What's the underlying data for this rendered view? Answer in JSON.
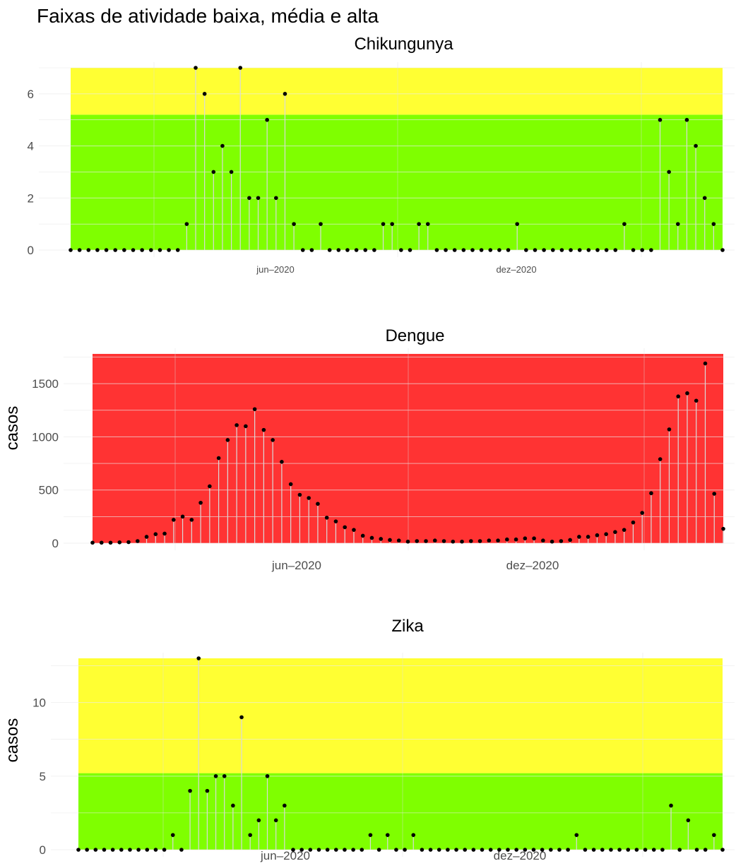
{
  "title": "Faixas de atividade baixa, média e alta",
  "chart_data": [
    {
      "type": "lollipop",
      "title": "Chikungunya",
      "ylabel": "",
      "ylim": [
        0,
        7
      ],
      "y_ticks": [
        "0",
        "2",
        "4",
        "6"
      ],
      "x_ticks": [
        "jun–2020",
        "dez–2020"
      ],
      "bands": [
        {
          "color": "#7fff00",
          "from": 0,
          "to": 5.2
        },
        {
          "color": "#ffff33",
          "from": 5.2,
          "to": 7
        }
      ],
      "values": [
        0,
        0,
        0,
        0,
        0,
        0,
        0,
        0,
        0,
        0,
        0,
        0,
        0,
        1,
        7,
        6,
        3,
        4,
        3,
        7,
        2,
        2,
        5,
        2,
        6,
        1,
        0,
        0,
        1,
        0,
        0,
        0,
        0,
        0,
        0,
        1,
        1,
        0,
        0,
        1,
        1,
        0,
        0,
        0,
        0,
        0,
        0,
        0,
        0,
        0,
        1,
        0,
        0,
        0,
        0,
        0,
        0,
        0,
        0,
        0,
        0,
        0,
        1,
        0,
        0,
        0,
        5,
        3,
        1,
        5,
        4,
        2,
        1,
        0
      ]
    },
    {
      "type": "lollipop",
      "title": "Dengue",
      "ylabel": "casos",
      "ylim": [
        0,
        1780
      ],
      "y_ticks": [
        "0",
        "500",
        "1000",
        "1500"
      ],
      "x_ticks": [
        "jun–2020",
        "dez–2020"
      ],
      "bands": [
        {
          "color": "#ff3333",
          "from": 0,
          "to": 1780
        }
      ],
      "values": [
        5,
        5,
        5,
        8,
        10,
        20,
        60,
        85,
        90,
        220,
        250,
        220,
        380,
        535,
        800,
        970,
        1110,
        1100,
        1260,
        1065,
        970,
        765,
        555,
        455,
        425,
        370,
        240,
        205,
        150,
        125,
        70,
        50,
        40,
        30,
        25,
        15,
        20,
        20,
        25,
        20,
        15,
        15,
        20,
        20,
        25,
        25,
        35,
        35,
        45,
        45,
        25,
        15,
        20,
        30,
        60,
        60,
        75,
        85,
        105,
        125,
        195,
        285,
        470,
        790,
        1070,
        1380,
        1410,
        1340,
        1690,
        465,
        135
      ]
    },
    {
      "type": "lollipop",
      "title": "Zika",
      "ylabel": "casos",
      "ylim": [
        0,
        13
      ],
      "y_ticks": [
        "0",
        "5",
        "10"
      ],
      "x_ticks": [
        "jun–2020",
        "dez–2020"
      ],
      "bands": [
        {
          "color": "#7fff00",
          "from": 0,
          "to": 5.2
        },
        {
          "color": "#ffff33",
          "from": 5.2,
          "to": 13
        }
      ],
      "values": [
        0,
        0,
        0,
        0,
        0,
        0,
        0,
        0,
        0,
        0,
        0,
        1,
        0,
        4,
        13,
        4,
        5,
        5,
        3,
        9,
        1,
        2,
        5,
        2,
        3,
        0,
        0,
        0,
        0,
        0,
        0,
        0,
        0,
        0,
        1,
        0,
        1,
        0,
        0,
        1,
        0,
        0,
        0,
        0,
        0,
        0,
        0,
        0,
        0,
        0,
        0,
        0,
        0,
        0,
        0,
        0,
        0,
        0,
        1,
        0,
        0,
        0,
        0,
        0,
        0,
        0,
        0,
        0,
        0,
        3,
        0,
        2,
        0,
        0,
        1,
        0
      ]
    }
  ]
}
